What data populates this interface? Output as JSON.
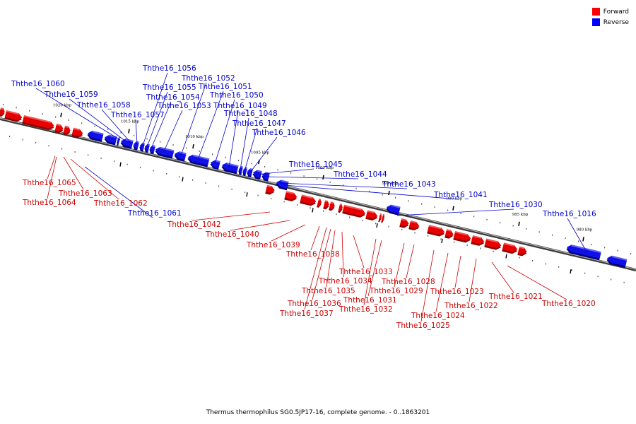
{
  "legend": [
    {
      "label": "Forward",
      "color": "#ff0000"
    },
    {
      "label": "Reverse",
      "color": "#0000ff"
    }
  ],
  "caption": "Thermus thermophilus SG0.5JP17-16, complete genome. - 0..1863201",
  "colors": {
    "forward": "#e80000",
    "reverse": "#1010e8",
    "forward_label": "#cc0000",
    "reverse_label": "#0000cc",
    "backbone": "#777777"
  },
  "ticks": [
    "1020 kbp",
    "1015 kbp",
    "1010 kbp",
    "1005 kbp",
    "1000 kbp",
    "995 kbp",
    "990 kbp",
    "985 kbp",
    "980 kbp"
  ],
  "genes": [
    {
      "name": "Ththe16_1065",
      "strand": "forward"
    },
    {
      "name": "Ththe16_1064",
      "strand": "forward"
    },
    {
      "name": "Ththe16_1063",
      "strand": "forward"
    },
    {
      "name": "Ththe16_1062",
      "strand": "forward"
    },
    {
      "name": "Ththe16_1061",
      "strand": "reverse"
    },
    {
      "name": "Ththe16_1060",
      "strand": "reverse"
    },
    {
      "name": "Ththe16_1059",
      "strand": "reverse"
    },
    {
      "name": "Ththe16_1058",
      "strand": "reverse"
    },
    {
      "name": "Ththe16_1057",
      "strand": "reverse"
    },
    {
      "name": "Ththe16_1056",
      "strand": "reverse"
    },
    {
      "name": "Ththe16_1055",
      "strand": "reverse"
    },
    {
      "name": "Ththe16_1054",
      "strand": "reverse"
    },
    {
      "name": "Ththe16_1053",
      "strand": "reverse"
    },
    {
      "name": "Ththe16_1052",
      "strand": "reverse"
    },
    {
      "name": "Ththe16_1051",
      "strand": "reverse"
    },
    {
      "name": "Ththe16_1050",
      "strand": "reverse"
    },
    {
      "name": "Ththe16_1049",
      "strand": "reverse"
    },
    {
      "name": "Ththe16_1048",
      "strand": "reverse"
    },
    {
      "name": "Ththe16_1047",
      "strand": "reverse"
    },
    {
      "name": "Ththe16_1046",
      "strand": "reverse"
    },
    {
      "name": "Ththe16_1045",
      "strand": "reverse"
    },
    {
      "name": "Ththe16_1044",
      "strand": "reverse"
    },
    {
      "name": "Ththe16_1043",
      "strand": "reverse"
    },
    {
      "name": "Ththe16_1042",
      "strand": "forward"
    },
    {
      "name": "Ththe16_1041",
      "strand": "reverse"
    },
    {
      "name": "Ththe16_1040",
      "strand": "forward"
    },
    {
      "name": "Ththe16_1039",
      "strand": "forward"
    },
    {
      "name": "Ththe16_1038",
      "strand": "forward"
    },
    {
      "name": "Ththe16_1037",
      "strand": "forward"
    },
    {
      "name": "Ththe16_1036",
      "strand": "forward"
    },
    {
      "name": "Ththe16_1035",
      "strand": "forward"
    },
    {
      "name": "Ththe16_1034",
      "strand": "forward"
    },
    {
      "name": "Ththe16_1033",
      "strand": "forward"
    },
    {
      "name": "Ththe16_1032",
      "strand": "forward"
    },
    {
      "name": "Ththe16_1031",
      "strand": "forward"
    },
    {
      "name": "Ththe16_1030",
      "strand": "reverse"
    },
    {
      "name": "Ththe16_1029",
      "strand": "forward"
    },
    {
      "name": "Ththe16_1028",
      "strand": "forward"
    },
    {
      "name": "Ththe16_1025",
      "strand": "forward"
    },
    {
      "name": "Ththe16_1024",
      "strand": "forward"
    },
    {
      "name": "Ththe16_1023",
      "strand": "forward"
    },
    {
      "name": "Ththe16_1022",
      "strand": "forward"
    },
    {
      "name": "Ththe16_1021",
      "strand": "forward"
    },
    {
      "name": "Ththe16_1020",
      "strand": "forward"
    },
    {
      "name": "Ththe16_1016",
      "strand": "reverse"
    }
  ]
}
